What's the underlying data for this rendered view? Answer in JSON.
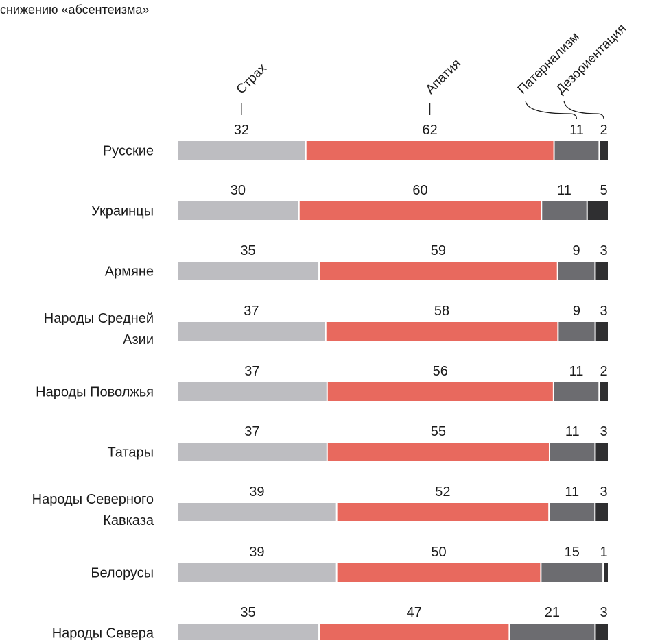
{
  "chart_data": {
    "type": "bar",
    "subtitle": "снижению «абсентеизма»",
    "stacked": true,
    "orientation": "horizontal",
    "categories": [
      "Русские",
      "Украинцы",
      "Армяне",
      "Народы Средней Азии",
      "Народы Поволжья",
      "Татары",
      "Народы Северного Кавказа",
      "Белорусы",
      "Народы Севера"
    ],
    "category_lines": [
      [
        "Русские"
      ],
      [
        "Украинцы"
      ],
      [
        "Армяне"
      ],
      [
        "Народы Средней",
        "Азии"
      ],
      [
        "Народы Поволжья"
      ],
      [
        "Татары"
      ],
      [
        "Народы Северного",
        "Кавказа"
      ],
      [
        "Белорусы"
      ],
      [
        "Народы Севера"
      ]
    ],
    "series": [
      {
        "name": "Страх",
        "color": "#bdbdc1",
        "values": [
          32,
          30,
          35,
          37,
          37,
          37,
          39,
          39,
          35
        ]
      },
      {
        "name": "Апатия",
        "color": "#e8695e",
        "values": [
          62,
          60,
          59,
          58,
          56,
          55,
          52,
          50,
          47
        ]
      },
      {
        "name": "Патернализм",
        "color": "#6c6c70",
        "values": [
          11,
          11,
          9,
          9,
          11,
          11,
          11,
          15,
          21
        ]
      },
      {
        "name": "Дезориентация",
        "color": "#2f2f31",
        "values": [
          2,
          5,
          3,
          3,
          2,
          3,
          3,
          1,
          3
        ]
      }
    ],
    "legend_placement": "top, rotated labels above first bar",
    "grid": false,
    "value_labels": true
  }
}
